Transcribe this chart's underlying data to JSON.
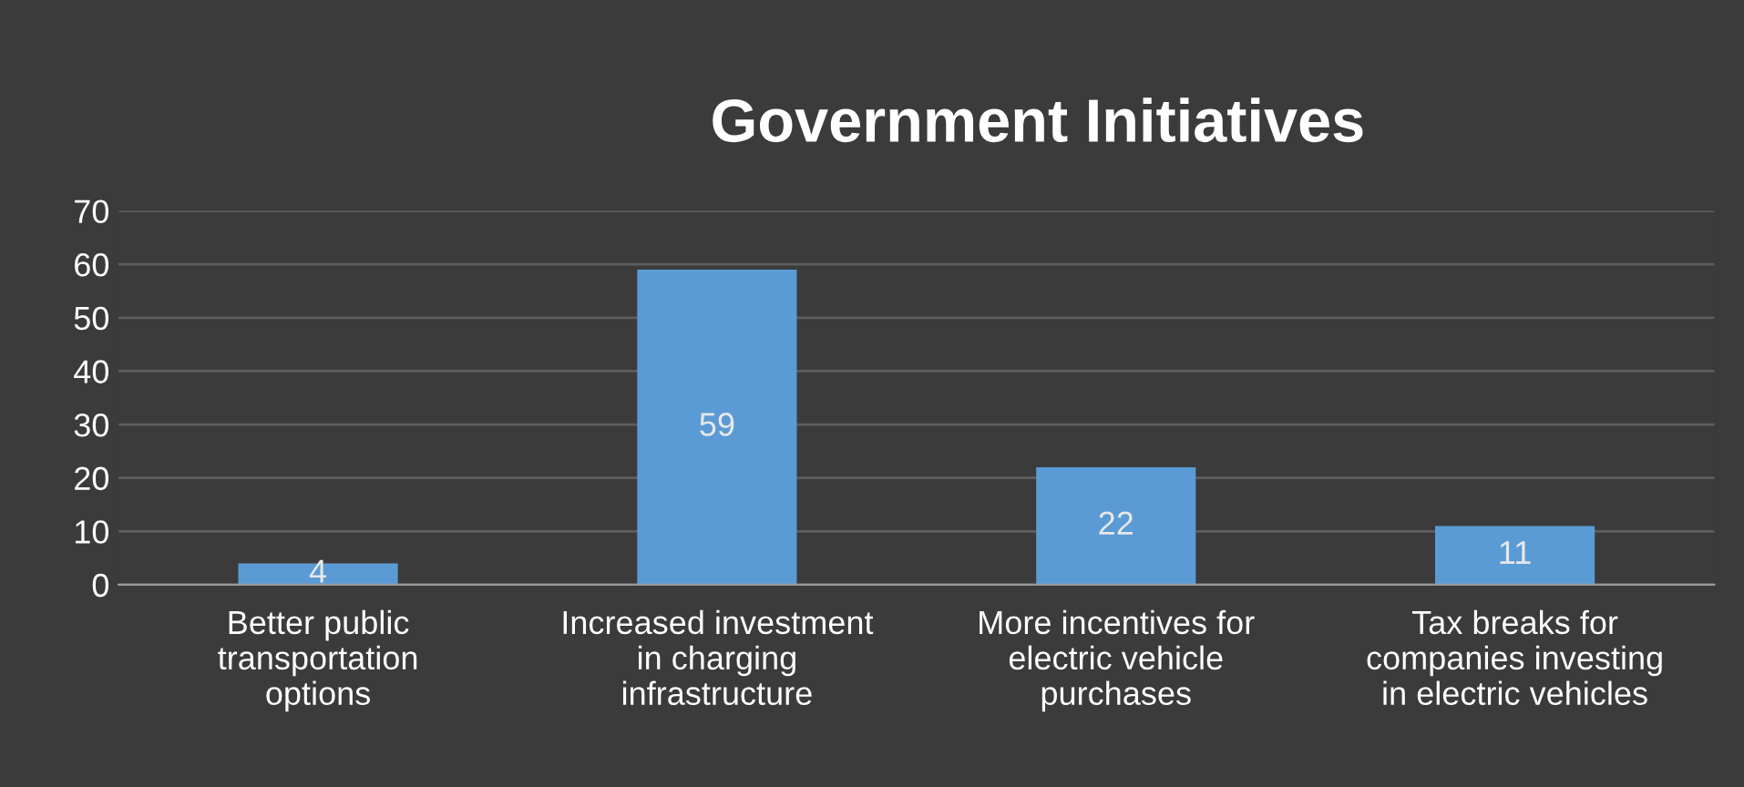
{
  "chart_data": {
    "type": "bar",
    "title": "Government Initiatives",
    "categories": [
      "Better public\ntransportation\noptions",
      "Increased investment\nin charging\ninfrastructure",
      "More incentives for\nelectric vehicle\npurchases",
      "Tax breaks for\ncompanies investing\nin electric vehicles"
    ],
    "values": [
      4,
      59,
      22,
      11
    ],
    "color": "#5b9bd5",
    "ylim": [
      0,
      70
    ],
    "yticks": [
      0,
      10,
      20,
      30,
      40,
      50,
      60,
      70
    ],
    "grid": "y",
    "data_labels": true
  }
}
